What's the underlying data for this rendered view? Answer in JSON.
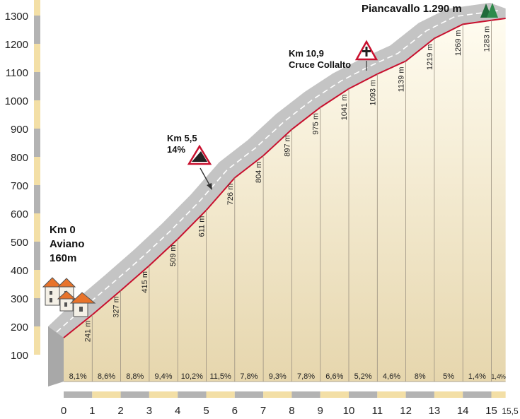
{
  "chart_data": {
    "type": "area",
    "title": "",
    "xlabel": "",
    "ylabel": "",
    "xlim": [
      0,
      15.5
    ],
    "ylim": [
      100,
      1300
    ],
    "x_ticks": [
      "0",
      "1",
      "2",
      "3",
      "4",
      "5",
      "6",
      "7",
      "8",
      "9",
      "10",
      "11",
      "12",
      "13",
      "14",
      "15",
      "15,5"
    ],
    "y_ticks": [
      "100",
      "200",
      "300",
      "400",
      "500",
      "600",
      "700",
      "800",
      "900",
      "1000",
      "1100",
      "1200",
      "1300"
    ],
    "x": [
      0,
      1,
      2,
      3,
      4,
      5,
      6,
      7,
      8,
      9,
      10,
      11,
      12,
      13,
      14,
      15,
      15.5
    ],
    "elevation": [
      160,
      241,
      327,
      415,
      509,
      611,
      726,
      804,
      897,
      975,
      1041,
      1093,
      1139,
      1219,
      1269,
      1283,
      1290
    ],
    "elevation_labels": [
      "241 m",
      "327 m",
      "415 m",
      "509 m",
      "611 m",
      "726 m",
      "804 m",
      "897 m",
      "975 m",
      "1041 m",
      "1093 m",
      "1139 m",
      "1219 m",
      "1269 m",
      "1283 m"
    ],
    "gradients": [
      "8,1%",
      "8,6%",
      "8,8%",
      "9,4%",
      "10,2%",
      "11,5%",
      "7,8%",
      "9,3%",
      "7,8%",
      "6,6%",
      "5,2%",
      "4,6%",
      "8%",
      "5%",
      "1,4%",
      "1,4%"
    ],
    "annotations": {
      "start": {
        "line1": "Km 0",
        "line2": "Aviano",
        "line3": "160m"
      },
      "steep": {
        "line1": "Km 5,5",
        "line2": "14%"
      },
      "cross": {
        "line1": "Km 10,9",
        "line2": "Cruce Collalto"
      },
      "finish": "Piancavallo 1.290 m"
    },
    "colors": {
      "profile_line": "#c8102e",
      "road_band": "#c4c4c4",
      "fill_top": "#fffcf0",
      "fill_bottom": "#e6d6ad",
      "scale_gray": "#b3b3b3",
      "scale_tan": "#f3dfa6"
    }
  }
}
